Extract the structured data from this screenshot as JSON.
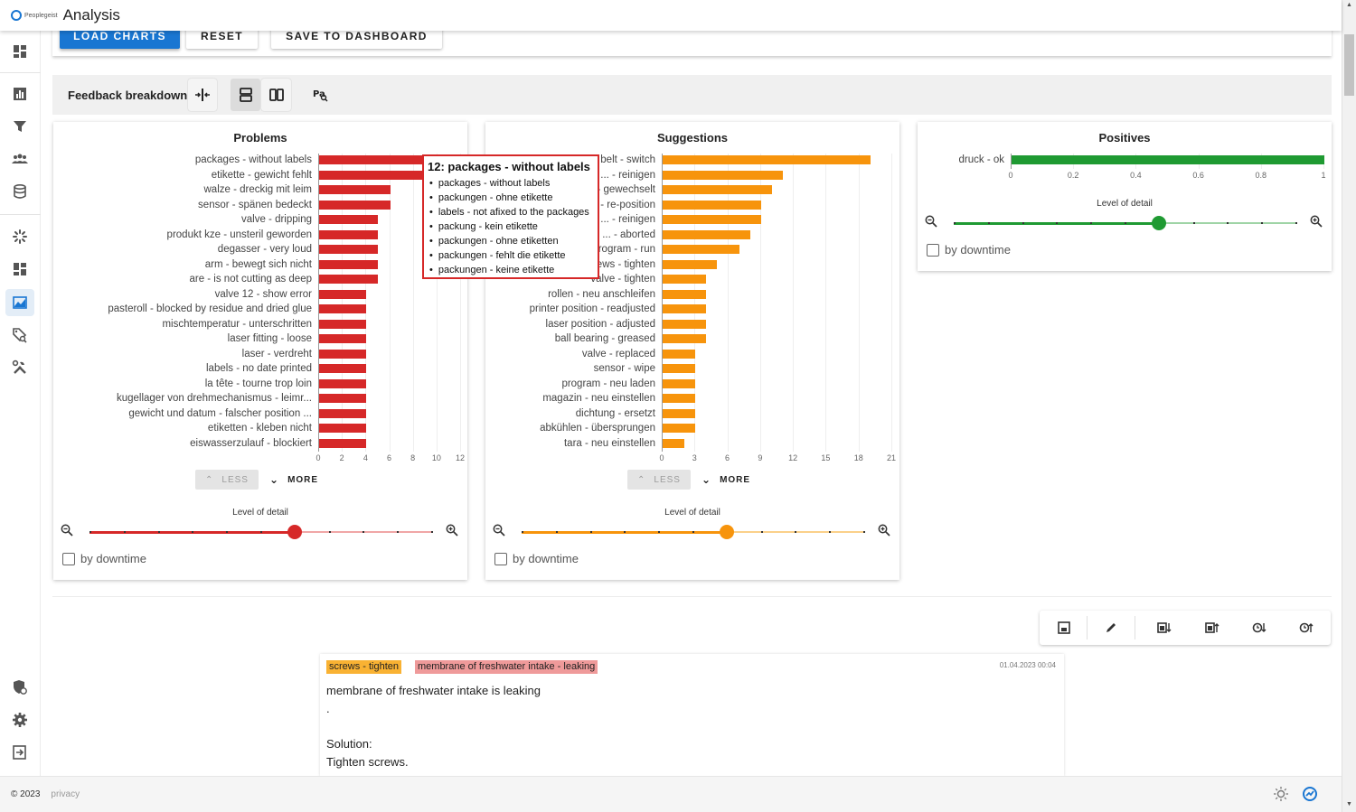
{
  "app": {
    "logo_text": "Peoplegeist",
    "title": "Analysis"
  },
  "actions": {
    "load_charts": "LOAD CHARTS",
    "reset": "RESET",
    "save_to_dashboard": "SAVE TO DASHBOARD"
  },
  "toolbar": {
    "title": "Feedback breakdown"
  },
  "colors": {
    "problems": "#d62828",
    "suggestions": "#f7940c",
    "positives": "#1f9a32",
    "primary": "#1976d2"
  },
  "controls": {
    "less_label": "LESS",
    "more_label": "MORE",
    "level_of_detail": "Level of detail",
    "by_downtime": "by downtime"
  },
  "tooltip": {
    "title": "12: packages - without labels",
    "items": [
      "packages - without labels",
      "packungen - ohne etikette",
      "labels - not afixed to the packages",
      "packung - kein etikette",
      "packungen - ohne etiketten",
      "packungen - fehlt die etikette",
      "packungen - keine etikette"
    ]
  },
  "chart_data": [
    {
      "type": "bar",
      "orientation": "horizontal",
      "title": "Problems",
      "categories": [
        "packages - without labels",
        "etikette - gewicht fehlt",
        "walze - dreckig mit leim",
        "sensor - spänen bedeckt",
        "valve - dripping",
        "produkt kze - unsteril geworden",
        "degasser - very loud",
        "arm - bewegt sich nicht",
        "are - is not cutting as deep",
        "valve 12 - show error",
        "pasteroll - blocked by residue and dried glue",
        "mischtemperatur - unterschritten",
        "laser fitting - loose",
        "laser - verdreht",
        "labels - no date printed",
        "la tête - tourne trop loin",
        "kugellager von drehmechanismus - leimr...",
        "gewicht und datum - falscher position ...",
        "etiketten - kleben nicht",
        "eiswasserzulauf - blockiert"
      ],
      "values": [
        12,
        9,
        6,
        6,
        5,
        5,
        5,
        5,
        5,
        4,
        4,
        4,
        4,
        4,
        4,
        4,
        4,
        4,
        4,
        4
      ],
      "xlim": [
        0,
        12
      ],
      "ticks": [
        0,
        2,
        4,
        6,
        8,
        10,
        12
      ],
      "slider_level": 0.6
    },
    {
      "type": "bar",
      "orientation": "horizontal",
      "title": "Suggestions",
      "categories": [
        "... belt - switch",
        "... - reinigen",
        "datum - gewechselt",
        "... - re-position",
        "... - reinigen",
        "... - aborted",
        "... program - run",
        "screws - tighten",
        "valve - tighten",
        "rollen - neu anschleifen",
        "printer position - readjusted",
        "laser position - adjusted",
        "ball bearing - greased",
        "valve - replaced",
        "sensor - wipe",
        "program - neu laden",
        "magazin - neu einstellen",
        "dichtung - ersetzt",
        "abkühlen - übersprungen",
        "tara - neu einstellen"
      ],
      "values": [
        19,
        11,
        10,
        9,
        9,
        8,
        7,
        5,
        4,
        4,
        4,
        4,
        4,
        3,
        3,
        3,
        3,
        3,
        3,
        2
      ],
      "xlim": [
        0,
        21
      ],
      "ticks": [
        0,
        3,
        6,
        9,
        12,
        15,
        18,
        21
      ],
      "slider_level": 0.6
    },
    {
      "type": "bar",
      "orientation": "horizontal",
      "title": "Positives",
      "categories": [
        "druck - ok"
      ],
      "values": [
        1
      ],
      "xlim": [
        0,
        1
      ],
      "ticks": [
        "0",
        "0.2",
        "0.4",
        "0.6",
        "0.8",
        "1"
      ],
      "slider_level": 0.6
    }
  ],
  "comment": {
    "tags": [
      "screws - tighten",
      "membrane of freshwater intake - leaking"
    ],
    "date": "01.04.2023 00:04",
    "lines": [
      "membrane of freshwater intake is leaking",
      ".",
      "Solution:",
      "Tighten screws."
    ]
  },
  "footer": {
    "copyright": "© 2023",
    "privacy": "privacy"
  }
}
